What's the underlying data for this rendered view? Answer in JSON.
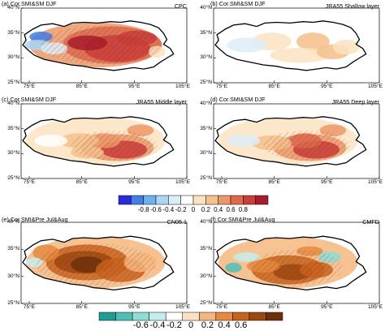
{
  "panels": [
    {
      "id": "a",
      "left": "(a) Cor.SMI&SM DJF",
      "right": "CPC",
      "palette": "bwr",
      "yticks": [
        "40°N",
        "35°N",
        "30°N",
        "25°N"
      ],
      "xticks": [
        "75°E",
        "85°E",
        "95°E",
        "105°E"
      ]
    },
    {
      "id": "b",
      "left": "(b) Cor.SMI&SM DJF",
      "right": "JRA55 Shallow layer",
      "palette": "bwr",
      "yticks": [
        "40°N",
        "35°N",
        "30°N",
        "25°N"
      ],
      "xticks": [
        "75°E",
        "85°E",
        "95°E",
        "105°E"
      ]
    },
    {
      "id": "c",
      "left": "(c) Cor.SMI&SM DJF",
      "right": "JRA55 Middle layer",
      "palette": "bwr",
      "yticks": [
        "40°N",
        "35°N",
        "30°N",
        "25°N"
      ],
      "xticks": [
        "75°E",
        "85°E",
        "95°E",
        "105°E"
      ]
    },
    {
      "id": "d",
      "left": "(d) Cor.SMI&SM DJF",
      "right": "JRA55 Deep layer",
      "palette": "bwr",
      "yticks": [
        "40°N",
        "35°N",
        "30°N",
        "25°N"
      ],
      "xticks": [
        "75°E",
        "85°E",
        "95°E",
        "105°E"
      ]
    },
    {
      "id": "e",
      "left": "(e) Cor.SMI&Pre Jul&Aug",
      "right": "CN05.1",
      "palette": "brbg",
      "yticks": [
        "40°N",
        "35°N",
        "30°N",
        "25°N"
      ],
      "xticks": [
        "75°E",
        "85°E",
        "95°E",
        "105°E"
      ]
    },
    {
      "id": "f",
      "left": "(f) Cor.SMI&Pre Jul&Aug",
      "right": "CMFD",
      "palette": "brbg",
      "yticks": [
        "40°N",
        "35°N",
        "30°N",
        "25°N"
      ],
      "xticks": [
        "75°E",
        "85°E",
        "95°E",
        "105°E"
      ]
    }
  ],
  "colorbar1": {
    "labels": [
      "-0.8",
      "-0.6",
      "-0.4",
      "-0.2",
      "0",
      "0.2",
      "0.4",
      "0.6",
      "0.8"
    ],
    "colors": [
      "#2a2ad8",
      "#3f7fe6",
      "#6fb0ee",
      "#a9d6f5",
      "#dcedf8",
      "#ffffff",
      "#fbe3c2",
      "#f5c08c",
      "#eb9868",
      "#dd6a4c",
      "#c93d3a",
      "#a81c2c"
    ]
  },
  "colorbar2": {
    "labels": [
      "-0.6",
      "-0.4",
      "-0.2",
      "0",
      "0.2",
      "0.4",
      "0.6"
    ],
    "colors": [
      "#1f9c93",
      "#4fbfb6",
      "#8fdcd3",
      "#c4eeea",
      "#ffffff",
      "#fde1c2",
      "#f6b77e",
      "#e58a3e",
      "#c8631d",
      "#9c4811",
      "#6e300b"
    ]
  }
}
